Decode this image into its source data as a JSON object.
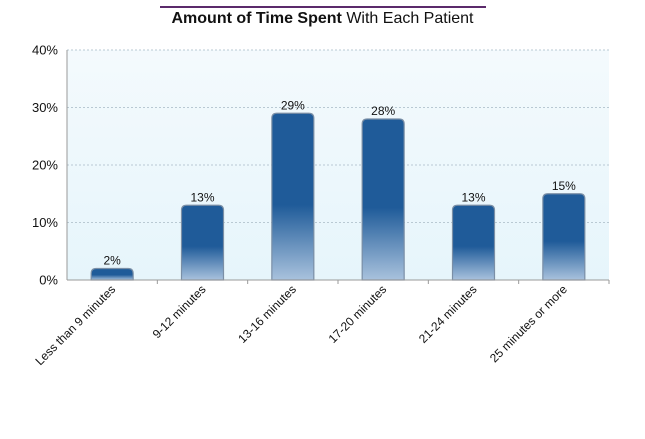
{
  "colors": {
    "bar_top": "#1f5b99",
    "bar_bottom": "#a9c2dd",
    "bar_edge": "#7b8fa6",
    "plot_bg_top": "#f4fafd",
    "plot_bg_bottom": "#e6f5fb",
    "grid": "#b9c9d3",
    "axis": "#9a9a9a",
    "title_rule": "#5b2a6b",
    "text": "#111111"
  },
  "chart_data": {
    "type": "bar",
    "title_bold": "Amount of Time Spent",
    "title_rest": " With Each Patient",
    "categories": [
      "Less than 9 minutes",
      "9-12 minutes",
      "13-16 minutes",
      "17-20 minutes",
      "21-24 minutes",
      "25 minutes or more"
    ],
    "values": [
      2,
      13,
      29,
      28,
      13,
      15
    ],
    "value_labels": [
      "2%",
      "13%",
      "29%",
      "28%",
      "13%",
      "15%"
    ],
    "y_ticks": [
      0,
      10,
      20,
      30,
      40
    ],
    "y_tick_labels": [
      "0%",
      "10%",
      "20%",
      "30%",
      "40%"
    ],
    "ylim": [
      0,
      40
    ],
    "grid": true,
    "legend": "none"
  }
}
